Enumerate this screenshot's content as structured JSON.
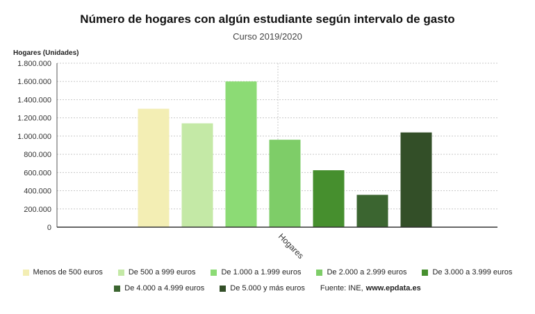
{
  "title": "Número de hogares con algún estudiante según intervalo de gasto",
  "subtitle": "Curso 2019/2020",
  "source_prefix": "Fuente: INE,",
  "source_site": "www.epdata.es",
  "chart_data": {
    "type": "bar",
    "title": "Número de hogares con algún estudiante según intervalo de gasto",
    "subtitle": "Curso 2019/2020",
    "ylabel": "Hogares (Unidades)",
    "xlabel": "",
    "categories": [
      "Hogares"
    ],
    "ylim": [
      0,
      1800000
    ],
    "yticks": [
      "0",
      "200.000",
      "400.000",
      "600.000",
      "800.000",
      "1.000.000",
      "1.200.000",
      "1.400.000",
      "1.600.000",
      "1.800.000"
    ],
    "ytick_values": [
      0,
      200000,
      400000,
      600000,
      800000,
      1000000,
      1200000,
      1400000,
      1600000,
      1800000
    ],
    "grid": true,
    "legend_position": "bottom",
    "series": [
      {
        "name": "Menos de 500 euros",
        "values": [
          1300000
        ],
        "color": "#f3eeb4"
      },
      {
        "name": "De 500 a 999 euros",
        "values": [
          1140000
        ],
        "color": "#c4e9a6"
      },
      {
        "name": "De 1.000 a 1.999 euros",
        "values": [
          1600000
        ],
        "color": "#8cdb75"
      },
      {
        "name": "De 2.000 a 2.999 euros",
        "values": [
          960000
        ],
        "color": "#7ecd68"
      },
      {
        "name": "De 3.000 a 3.999 euros",
        "values": [
          625000
        ],
        "color": "#468f2e"
      },
      {
        "name": "De 4.000 a 4.999 euros",
        "values": [
          355000
        ],
        "color": "#3b6530"
      },
      {
        "name": "De 5.000 y más euros",
        "values": [
          1040000
        ],
        "color": "#334f28"
      }
    ]
  }
}
